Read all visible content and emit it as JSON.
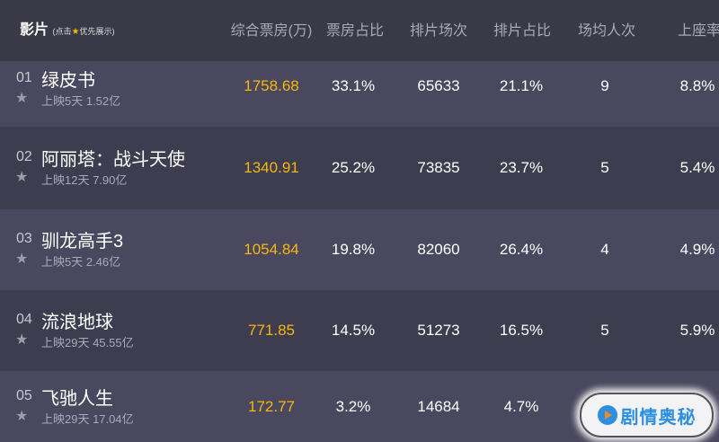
{
  "header": {
    "film": "影片",
    "film_hint_prefix": "(点击",
    "film_hint_suffix": "优先展示)",
    "columns": [
      "综合票房(万)",
      "票房占比",
      "排片场次",
      "排片占比",
      "场均人次",
      "上座率"
    ]
  },
  "rows": [
    {
      "rank": "01",
      "title": "绿皮书",
      "sub": "上映5天  1.52亿",
      "values": [
        "1758.68",
        "33.1%",
        "65633",
        "21.1%",
        "9",
        "8.8%"
      ]
    },
    {
      "rank": "02",
      "title": "阿丽塔：战斗天使",
      "sub": "上映12天  7.90亿",
      "values": [
        "1340.91",
        "25.2%",
        "73835",
        "23.7%",
        "5",
        "5.4%"
      ]
    },
    {
      "rank": "03",
      "title": "驯龙高手3",
      "sub": "上映5天  2.46亿",
      "values": [
        "1054.84",
        "19.8%",
        "82060",
        "26.4%",
        "4",
        "4.9%"
      ]
    },
    {
      "rank": "04",
      "title": "流浪地球",
      "sub": "上映29天  45.55亿",
      "values": [
        "771.85",
        "14.5%",
        "51273",
        "16.5%",
        "5",
        "5.9%"
      ]
    },
    {
      "rank": "05",
      "title": "飞驰人生",
      "sub": "上映29天  17.04亿",
      "values": [
        "172.77",
        "3.2%",
        "14684",
        "4.7%",
        "",
        ""
      ]
    }
  ],
  "watermark": "剧情奥秘",
  "colors": {
    "box_office": "#f5b70f",
    "star_hint": "#f5b800",
    "watermark": "#2e8fe0"
  },
  "icons": {
    "favorite": "star-icon"
  }
}
